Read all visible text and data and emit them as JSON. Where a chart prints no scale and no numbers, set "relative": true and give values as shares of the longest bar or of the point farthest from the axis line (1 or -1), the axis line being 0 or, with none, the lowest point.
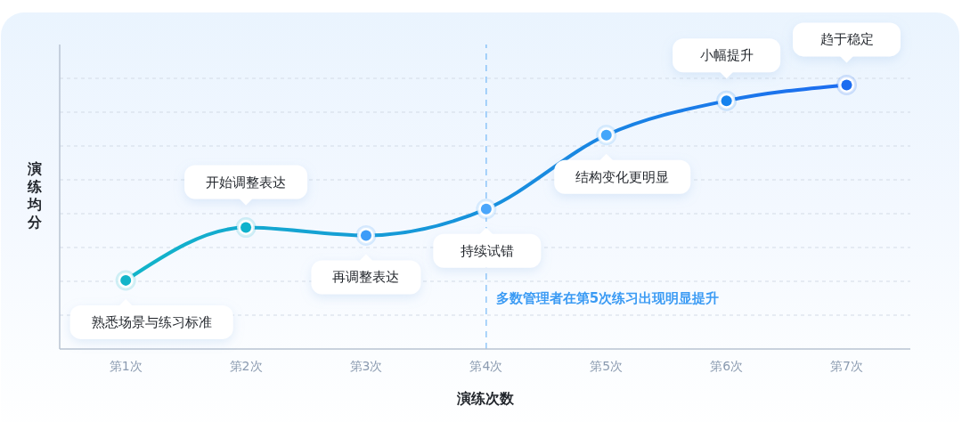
{
  "chart_data": {
    "type": "line",
    "xlabel": "演练次数",
    "ylabel": "演练均分",
    "relative": true,
    "categories": [
      "第1次",
      "第2次",
      "第3次",
      "第4次",
      "第5次",
      "第6次",
      "第7次"
    ],
    "values": [
      0.26,
      0.46,
      0.43,
      0.53,
      0.81,
      0.94,
      1
    ],
    "colors": [
      "#12b5c9",
      "#0fb2cc",
      "#3d9cf8",
      "#4aa6fb",
      "#44a6fa",
      "#1583ee",
      "#1c6cf0"
    ],
    "marker": "circle",
    "line_style": "solid",
    "grid": "y",
    "annotations": [
      {
        "text": "熟悉场景与练习标准",
        "x": "第1次",
        "y": 0.26
      },
      {
        "text": "开始调整表达",
        "x": "第2次",
        "y": 0.46
      },
      {
        "text": "再调整表达",
        "x": "第3次",
        "y": 0.43
      },
      {
        "text": "持续试错",
        "x": "第4次",
        "y": 0.53
      },
      {
        "text": "结构变化更明显",
        "x": "第5次",
        "y": 0.81
      },
      {
        "text": "小幅提升",
        "x": "第6次",
        "y": 0.94
      },
      {
        "text": "趋于稳定",
        "x": "第7次",
        "y": 1
      }
    ],
    "ref_lines": [
      {
        "axis": "x",
        "value": "第4次",
        "label": "多数管理者在第5次练习出现明显提升",
        "color": "#3b9bf4",
        "line_style": "dashed"
      }
    ]
  }
}
